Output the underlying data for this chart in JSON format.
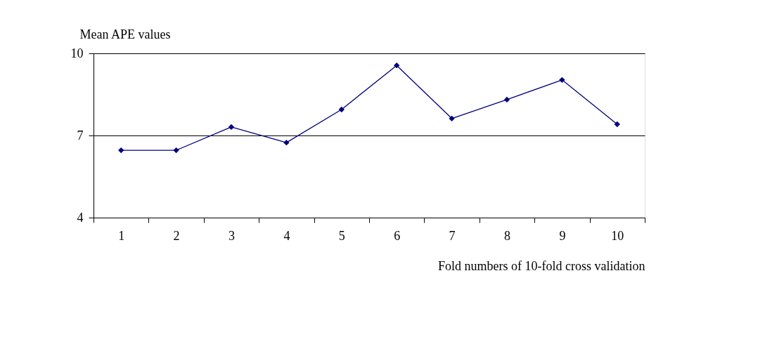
{
  "chart_data": {
    "type": "line",
    "xlabel": "Fold numbers of 10-fold cross validation",
    "ylabel": "Mean APE values",
    "categories": [
      "1",
      "2",
      "3",
      "4",
      "5",
      "6",
      "7",
      "8",
      "9",
      "10"
    ],
    "series": [
      {
        "color": "#000080",
        "values": [
          6.46,
          6.46,
          7.31,
          6.74,
          7.95,
          9.56,
          7.62,
          8.31,
          9.03,
          7.41
        ]
      }
    ],
    "ylim": [
      4,
      10
    ],
    "yticks": [
      4,
      7,
      10
    ],
    "grid": "y",
    "legend": false,
    "marker": "diamond",
    "line_style": "solid"
  }
}
